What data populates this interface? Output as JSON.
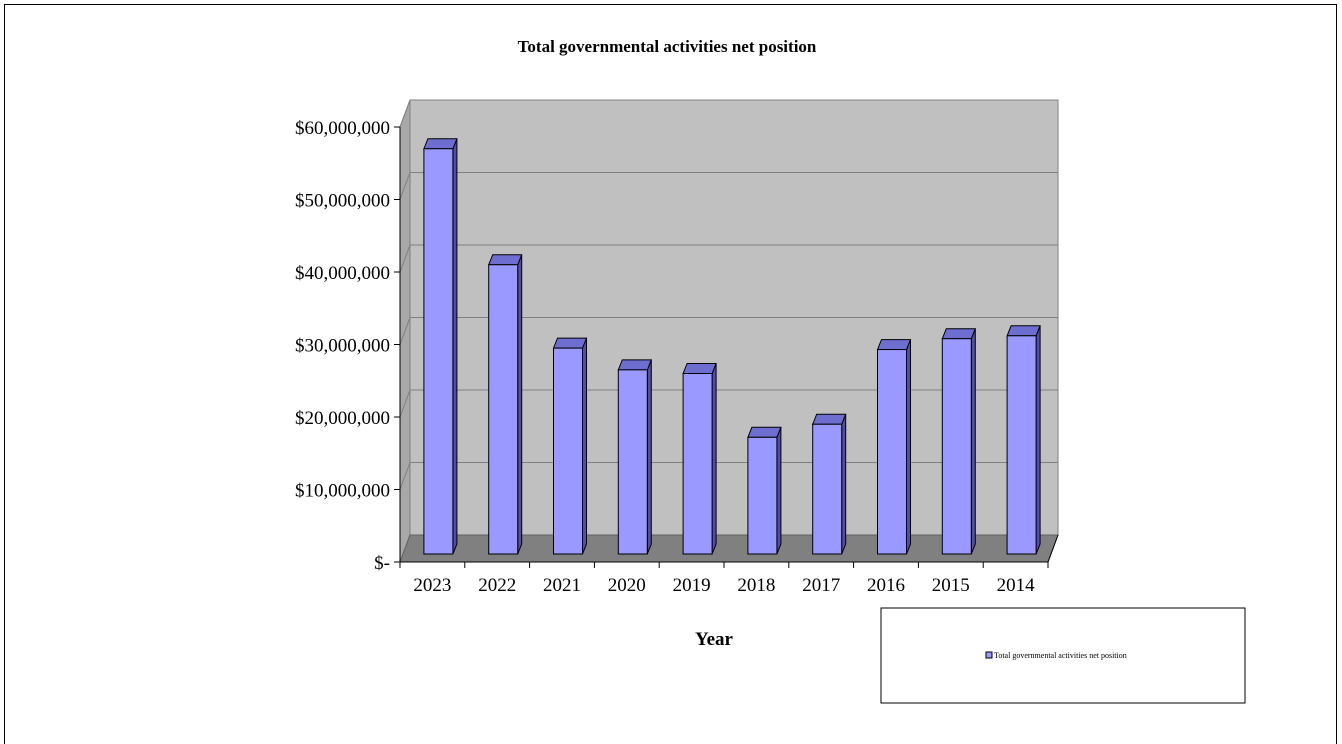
{
  "chart_data": {
    "type": "bar",
    "title": "Total governmental activities net position",
    "xlabel": "Year",
    "ylabel": "",
    "categories": [
      "2023",
      "2022",
      "2021",
      "2020",
      "2019",
      "2018",
      "2017",
      "2016",
      "2015",
      "2014"
    ],
    "series": [
      {
        "name": "Total governmental activities net position",
        "values": [
          57000000,
          41000000,
          29500000,
          26500000,
          26000000,
          17200000,
          19000000,
          29300000,
          30800000,
          31200000
        ]
      }
    ],
    "y_tick_labels": [
      "$-",
      "$10,000,000",
      "$20,000,000",
      "$30,000,000",
      "$40,000,000",
      "$50,000,000",
      "$60,000,000"
    ],
    "y_tick_values": [
      0,
      10000000,
      20000000,
      30000000,
      40000000,
      50000000,
      60000000
    ],
    "ylim": [
      0,
      60000000
    ],
    "grid": true,
    "legend_position": "bottom-right",
    "colors": {
      "bar_front": "#9999ff",
      "bar_top": "#6e6ed0",
      "bar_side": "#4f4fa8",
      "wall": "#c0c0c0",
      "floor": "#808080",
      "gridline": "#808080"
    }
  }
}
